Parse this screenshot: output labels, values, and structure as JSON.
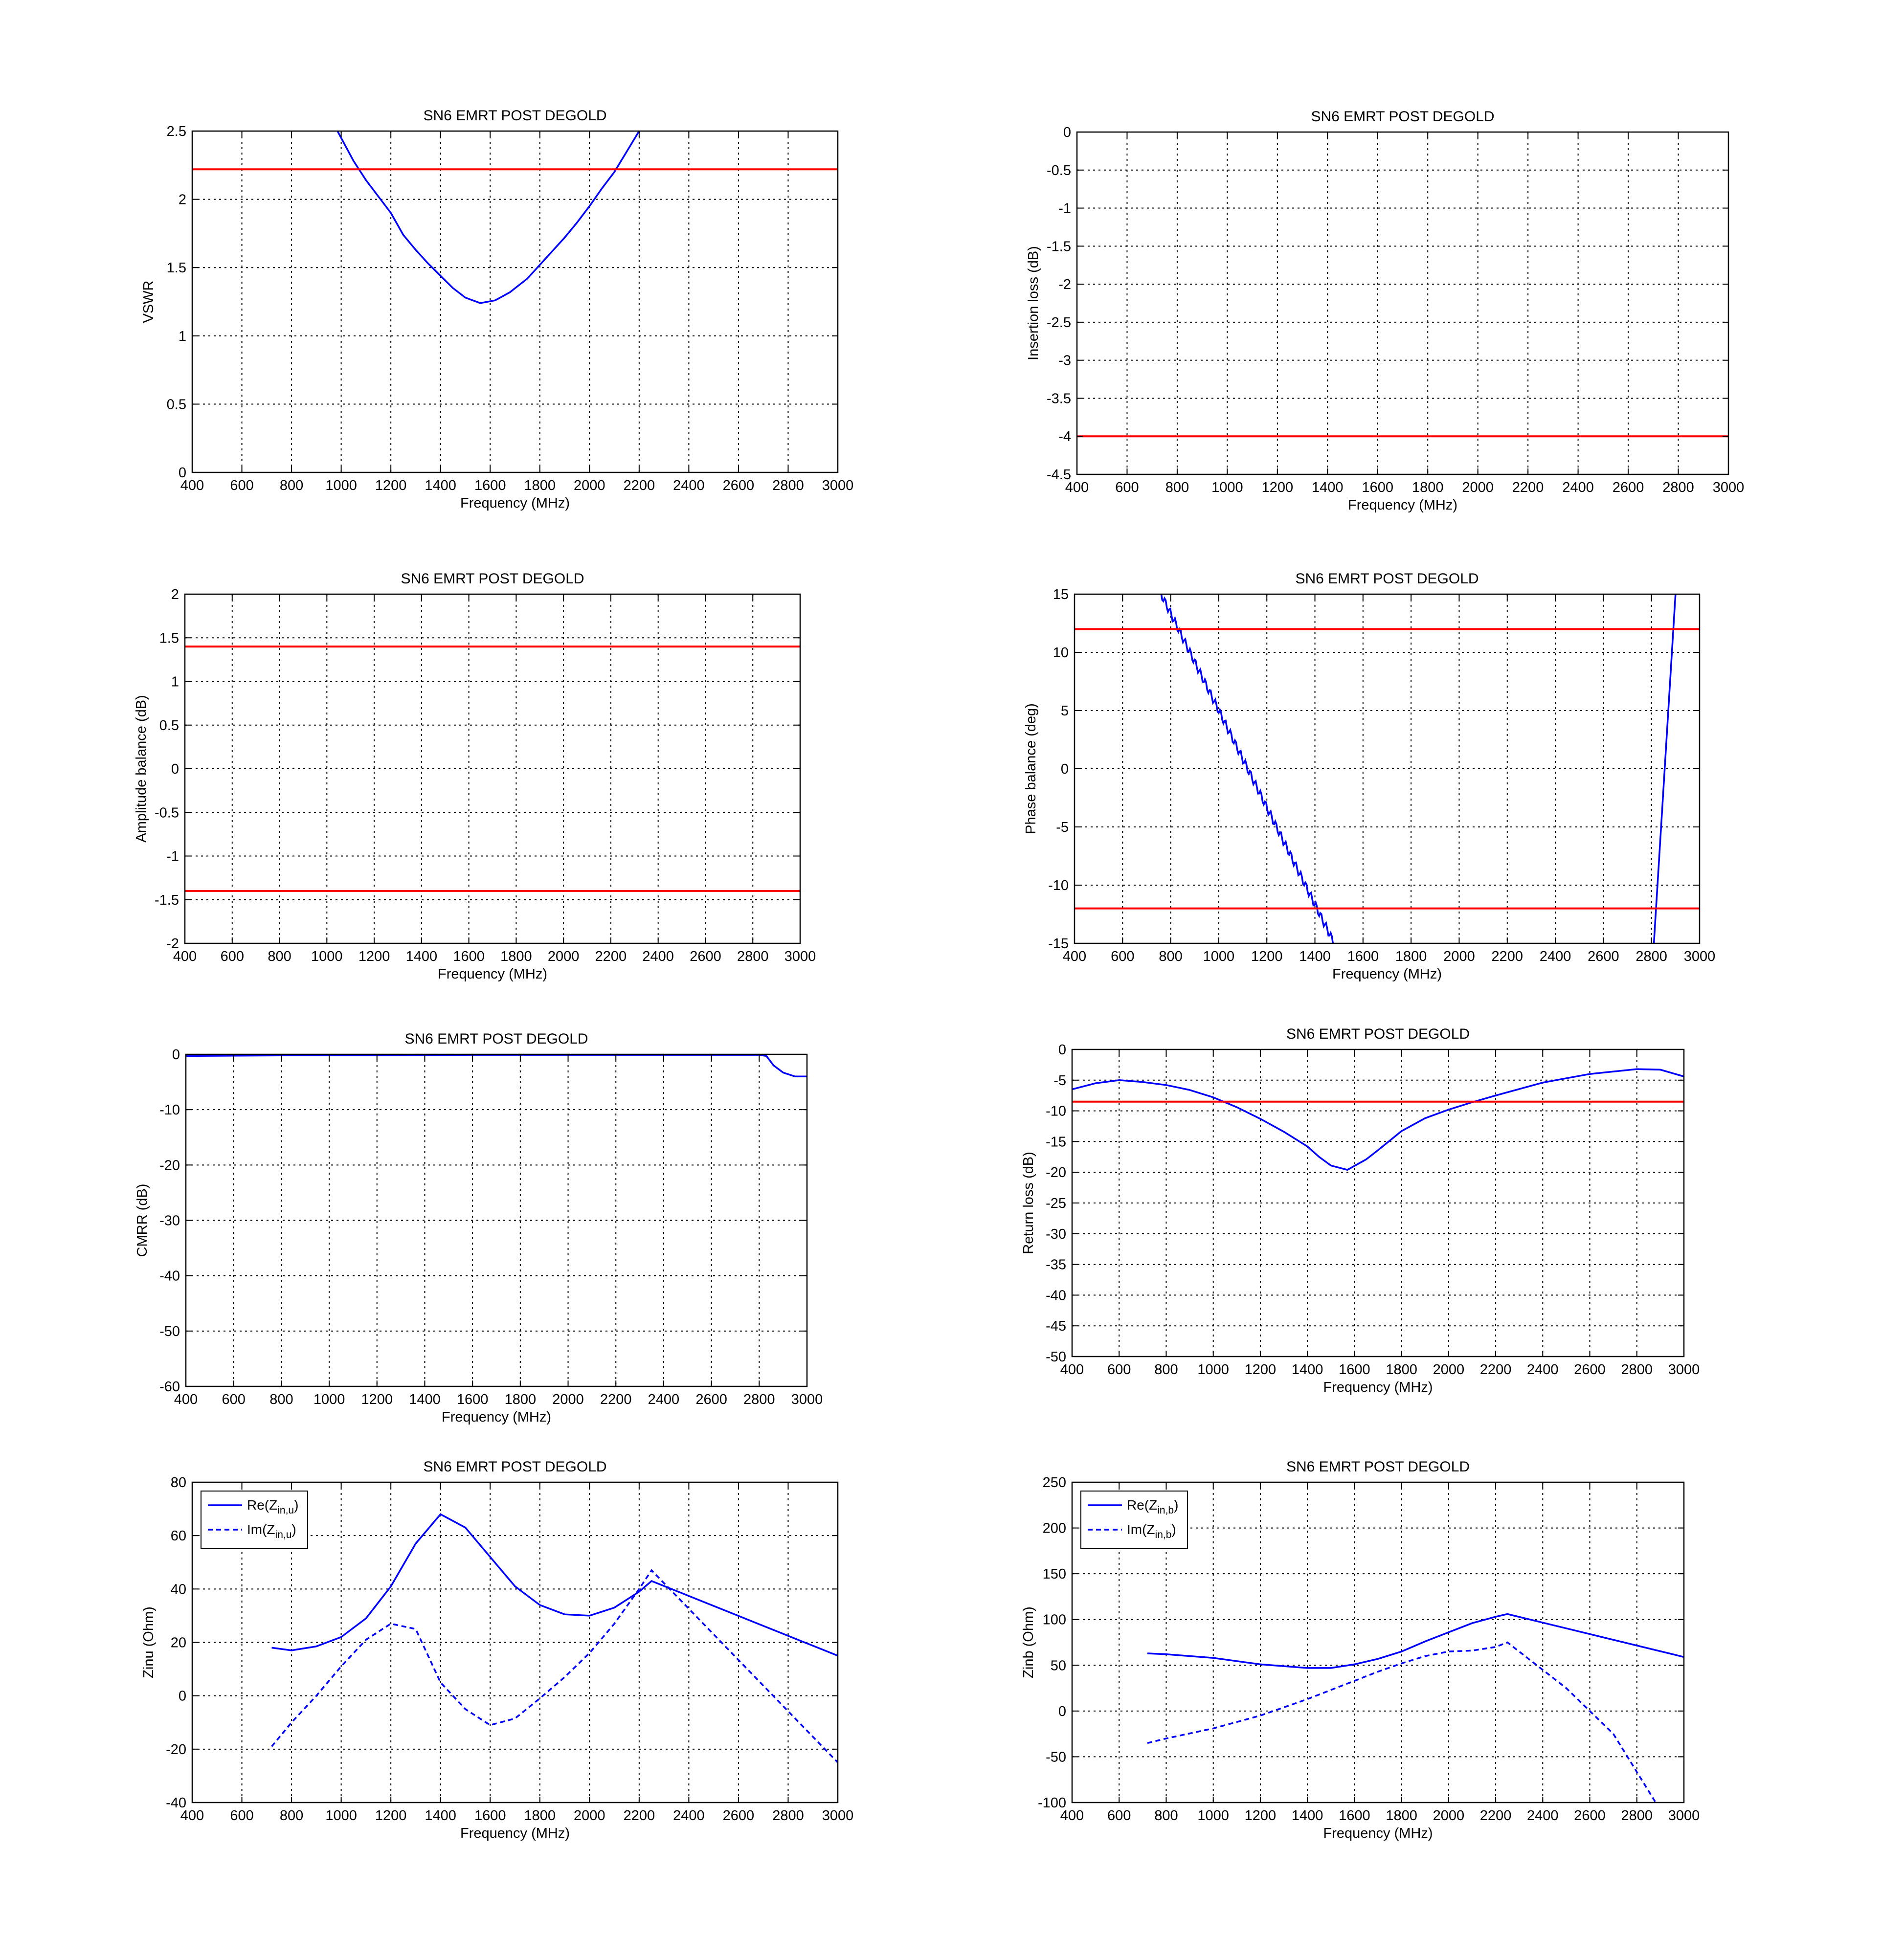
{
  "colors": {
    "curve": "#0000FF",
    "limit": "#FF0000",
    "grid": "#000000"
  },
  "chart_data": [
    {
      "id": "vswr",
      "type": "line",
      "title": "SN6 EMRT POST DEGOLD",
      "xlabel": "Frequency (MHz)",
      "ylabel": "VSWR",
      "xlim": [
        400,
        3000
      ],
      "ylim": [
        0,
        2.5
      ],
      "xticks": [
        "400",
        "600",
        "800",
        "1000",
        "1200",
        "1400",
        "1600",
        "1800",
        "2000",
        "2200",
        "2400",
        "2600",
        "2800",
        "3000"
      ],
      "yticks": [
        "0",
        "0.5",
        "1",
        "1.5",
        "2",
        "2.5"
      ],
      "grid": true,
      "series": [
        {
          "style": "solid",
          "color": "#0000FF",
          "x": [
            985,
            1050,
            1100,
            1150,
            1200,
            1250,
            1300,
            1350,
            1400,
            1450,
            1500,
            1560,
            1620,
            1680,
            1750,
            1800,
            1850,
            1900,
            1950,
            2000,
            2050,
            2100,
            2150,
            2200
          ],
          "y": [
            2.5,
            2.28,
            2.14,
            2.02,
            1.9,
            1.74,
            1.63,
            1.53,
            1.44,
            1.35,
            1.28,
            1.24,
            1.26,
            1.32,
            1.42,
            1.52,
            1.62,
            1.72,
            1.83,
            1.95,
            2.08,
            2.2,
            2.35,
            2.5
          ]
        },
        {
          "style": "limit",
          "color": "#FF0000",
          "x": [
            400,
            3000
          ],
          "y": [
            2.22,
            2.22
          ]
        }
      ]
    },
    {
      "id": "insertion",
      "type": "line",
      "title": "SN6 EMRT POST DEGOLD",
      "xlabel": "Frequency (MHz)",
      "ylabel": "Insertion loss (dB)",
      "xlim": [
        400,
        3000
      ],
      "ylim": [
        -4.5,
        0
      ],
      "xticks": [
        "400",
        "600",
        "800",
        "1000",
        "1200",
        "1400",
        "1600",
        "1800",
        "2000",
        "2200",
        "2400",
        "2600",
        "2800",
        "3000"
      ],
      "yticks": [
        "-4.5",
        "-4",
        "-3.5",
        "-3",
        "-2.5",
        "-2",
        "-1.5",
        "-1",
        "-0.5",
        "0"
      ],
      "grid": true,
      "series": [
        {
          "style": "limit",
          "color": "#FF0000",
          "x": [
            400,
            3000
          ],
          "y": [
            -4,
            -4
          ]
        }
      ]
    },
    {
      "id": "amplitude",
      "type": "line",
      "title": "SN6 EMRT POST DEGOLD",
      "xlabel": "Frequency (MHz)",
      "ylabel": "Amplitude balance (dB)",
      "xlim": [
        400,
        3000
      ],
      "ylim": [
        -2,
        2
      ],
      "xticks": [
        "400",
        "600",
        "800",
        "1000",
        "1200",
        "1400",
        "1600",
        "1800",
        "2000",
        "2200",
        "2400",
        "2600",
        "2800",
        "3000"
      ],
      "yticks": [
        "-2",
        "-1.5",
        "-1",
        "-0.5",
        "0",
        "0.5",
        "1",
        "1.5",
        "2"
      ],
      "grid": true,
      "series": [
        {
          "style": "limit",
          "color": "#FF0000",
          "x": [
            400,
            3000
          ],
          "y": [
            1.4,
            1.4
          ]
        },
        {
          "style": "limit",
          "color": "#FF0000",
          "x": [
            400,
            3000
          ],
          "y": [
            -1.4,
            -1.4
          ]
        }
      ]
    },
    {
      "id": "phase",
      "type": "line",
      "title": "SN6 EMRT POST DEGOLD",
      "xlabel": "Frequency (MHz)",
      "ylabel": "Phase balance (deg)",
      "xlim": [
        400,
        3000
      ],
      "ylim": [
        -15,
        15
      ],
      "xticks": [
        "400",
        "600",
        "800",
        "1000",
        "1200",
        "1400",
        "1600",
        "1800",
        "2000",
        "2200",
        "2400",
        "2600",
        "2800",
        "3000"
      ],
      "yticks": [
        "-15",
        "-10",
        "-5",
        "0",
        "5",
        "10",
        "15"
      ],
      "grid": true,
      "series": [
        {
          "style": "noisy",
          "color": "#0000FF",
          "x": [
            760,
            1480
          ],
          "y": [
            15,
            -15
          ]
        },
        {
          "style": "solid",
          "color": "#0000FF",
          "x": [
            2810,
            2900
          ],
          "y": [
            -15,
            15
          ]
        },
        {
          "style": "limit",
          "color": "#FF0000",
          "x": [
            400,
            3000
          ],
          "y": [
            12,
            12
          ]
        },
        {
          "style": "limit",
          "color": "#FF0000",
          "x": [
            400,
            3000
          ],
          "y": [
            -12,
            -12
          ]
        }
      ]
    },
    {
      "id": "cmrr",
      "type": "line",
      "title": "SN6 EMRT POST DEGOLD",
      "xlabel": "Frequency (MHz)",
      "ylabel": "CMRR (dB)",
      "xlim": [
        400,
        3000
      ],
      "ylim": [
        -60,
        0
      ],
      "xticks": [
        "400",
        "600",
        "800",
        "1000",
        "1200",
        "1400",
        "1600",
        "1800",
        "2000",
        "2200",
        "2400",
        "2600",
        "2800",
        "3000"
      ],
      "yticks": [
        "-60",
        "-50",
        "-40",
        "-30",
        "-20",
        "-10",
        "0"
      ],
      "grid": true,
      "series": [
        {
          "style": "solid",
          "color": "#0000FF",
          "x": [
            400,
            800,
            1200,
            1600,
            2000,
            2400,
            2800,
            2830,
            2860,
            2900,
            2950,
            3000
          ],
          "y": [
            -0.3,
            -0.2,
            -0.2,
            -0.1,
            -0.1,
            -0.1,
            -0.1,
            -0.3,
            -2.0,
            -3.3,
            -4.0,
            -4.0
          ]
        }
      ]
    },
    {
      "id": "return",
      "type": "line",
      "title": "SN6 EMRT POST DEGOLD",
      "xlabel": "Frequency (MHz)",
      "ylabel": "Return loss (dB)",
      "xlim": [
        400,
        3000
      ],
      "ylim": [
        -50,
        0
      ],
      "xticks": [
        "400",
        "600",
        "800",
        "1000",
        "1200",
        "1400",
        "1600",
        "1800",
        "2000",
        "2200",
        "2400",
        "2600",
        "2800",
        "3000"
      ],
      "yticks": [
        "-50",
        "-45",
        "-40",
        "-35",
        "-30",
        "-25",
        "-20",
        "-15",
        "-10",
        "-5",
        "0"
      ],
      "grid": true,
      "series": [
        {
          "style": "solid",
          "color": "#0000FF",
          "x": [
            400,
            500,
            600,
            700,
            800,
            900,
            1000,
            1100,
            1200,
            1300,
            1400,
            1450,
            1500,
            1570,
            1650,
            1700,
            1800,
            1900,
            2000,
            2100,
            2200,
            2400,
            2600,
            2800,
            2900,
            3000
          ],
          "y": [
            -6.5,
            -5.5,
            -5.0,
            -5.3,
            -5.8,
            -6.6,
            -7.8,
            -9.4,
            -11.3,
            -13.4,
            -15.8,
            -17.5,
            -18.9,
            -19.6,
            -17.9,
            -16.4,
            -13.3,
            -11.2,
            -9.8,
            -8.6,
            -7.5,
            -5.4,
            -4.0,
            -3.2,
            -3.3,
            -4.4
          ]
        },
        {
          "style": "limit",
          "color": "#FF0000",
          "x": [
            400,
            3000
          ],
          "y": [
            -8.5,
            -8.5
          ]
        }
      ]
    },
    {
      "id": "zinu",
      "type": "line",
      "title": "SN6 EMRT POST DEGOLD",
      "xlabel": "Frequency (MHz)",
      "ylabel": "Zinu (Ohm)",
      "xlim": [
        400,
        3000
      ],
      "ylim": [
        -40,
        80
      ],
      "xticks": [
        "400",
        "600",
        "800",
        "1000",
        "1200",
        "1400",
        "1600",
        "1800",
        "2000",
        "2200",
        "2400",
        "2600",
        "2800",
        "3000"
      ],
      "yticks": [
        "-40",
        "-20",
        "0",
        "20",
        "40",
        "60",
        "80"
      ],
      "grid": true,
      "legend": {
        "position": "top-left",
        "entries": [
          {
            "base": "Re(Z",
            "sub": "in,u",
            "close": ")",
            "style": "solid"
          },
          {
            "base": "Im(Z",
            "sub": "in,u",
            "close": ")",
            "style": "dashed"
          }
        ]
      },
      "series": [
        {
          "style": "solid",
          "color": "#0000FF",
          "x": [
            720,
            800,
            900,
            1000,
            1100,
            1200,
            1300,
            1400,
            1500,
            1600,
            1700,
            1800,
            1900,
            2000,
            2100,
            2200,
            2250,
            3000
          ],
          "y": [
            18,
            17,
            18.5,
            22,
            29,
            41,
            57,
            68,
            63,
            52,
            41,
            34,
            30.5,
            30,
            33,
            39,
            43,
            15
          ]
        },
        {
          "style": "dashed",
          "color": "#0000FF",
          "x": [
            720,
            800,
            900,
            1000,
            1100,
            1200,
            1300,
            1400,
            1500,
            1600,
            1700,
            1800,
            1900,
            2000,
            2100,
            2200,
            2250,
            3000
          ],
          "y": [
            -19,
            -10,
            0,
            11,
            21,
            27,
            25,
            5,
            -5,
            -11,
            -8.5,
            -1,
            7,
            16,
            27,
            40,
            47,
            -25
          ]
        }
      ]
    },
    {
      "id": "zinb",
      "type": "line",
      "title": "SN6 EMRT POST DEGOLD",
      "xlabel": "Frequency (MHz)",
      "ylabel": "Zinb (Ohm)",
      "xlim": [
        400,
        3000
      ],
      "ylim": [
        -100,
        250
      ],
      "xticks": [
        "400",
        "600",
        "800",
        "1000",
        "1200",
        "1400",
        "1600",
        "1800",
        "2000",
        "2200",
        "2400",
        "2600",
        "2800",
        "3000"
      ],
      "yticks": [
        "-100",
        "-50",
        "0",
        "50",
        "100",
        "150",
        "200",
        "250"
      ],
      "grid": true,
      "legend": {
        "position": "top-left",
        "entries": [
          {
            "base": "Re(Z",
            "sub": "in,b",
            "close": ")",
            "style": "solid"
          },
          {
            "base": "Im(Z",
            "sub": "in,b",
            "close": ")",
            "style": "dashed"
          }
        ]
      },
      "series": [
        {
          "style": "solid",
          "color": "#0000FF",
          "x": [
            720,
            800,
            1000,
            1200,
            1400,
            1500,
            1600,
            1700,
            1800,
            1900,
            2000,
            2100,
            2200,
            2250,
            3000
          ],
          "y": [
            63,
            62,
            58,
            51,
            47,
            47,
            51,
            57,
            65,
            76,
            86,
            96,
            103,
            106,
            59
          ]
        },
        {
          "style": "dashed",
          "color": "#0000FF",
          "x": [
            720,
            800,
            1000,
            1200,
            1400,
            1600,
            1700,
            1800,
            1900,
            2000,
            2100,
            2200,
            2250,
            2500,
            2700,
            2880
          ],
          "y": [
            -35,
            -30,
            -19,
            -5,
            13,
            33,
            43,
            52,
            60,
            65,
            66,
            70,
            75,
            25,
            -25,
            -100
          ]
        }
      ]
    }
  ]
}
